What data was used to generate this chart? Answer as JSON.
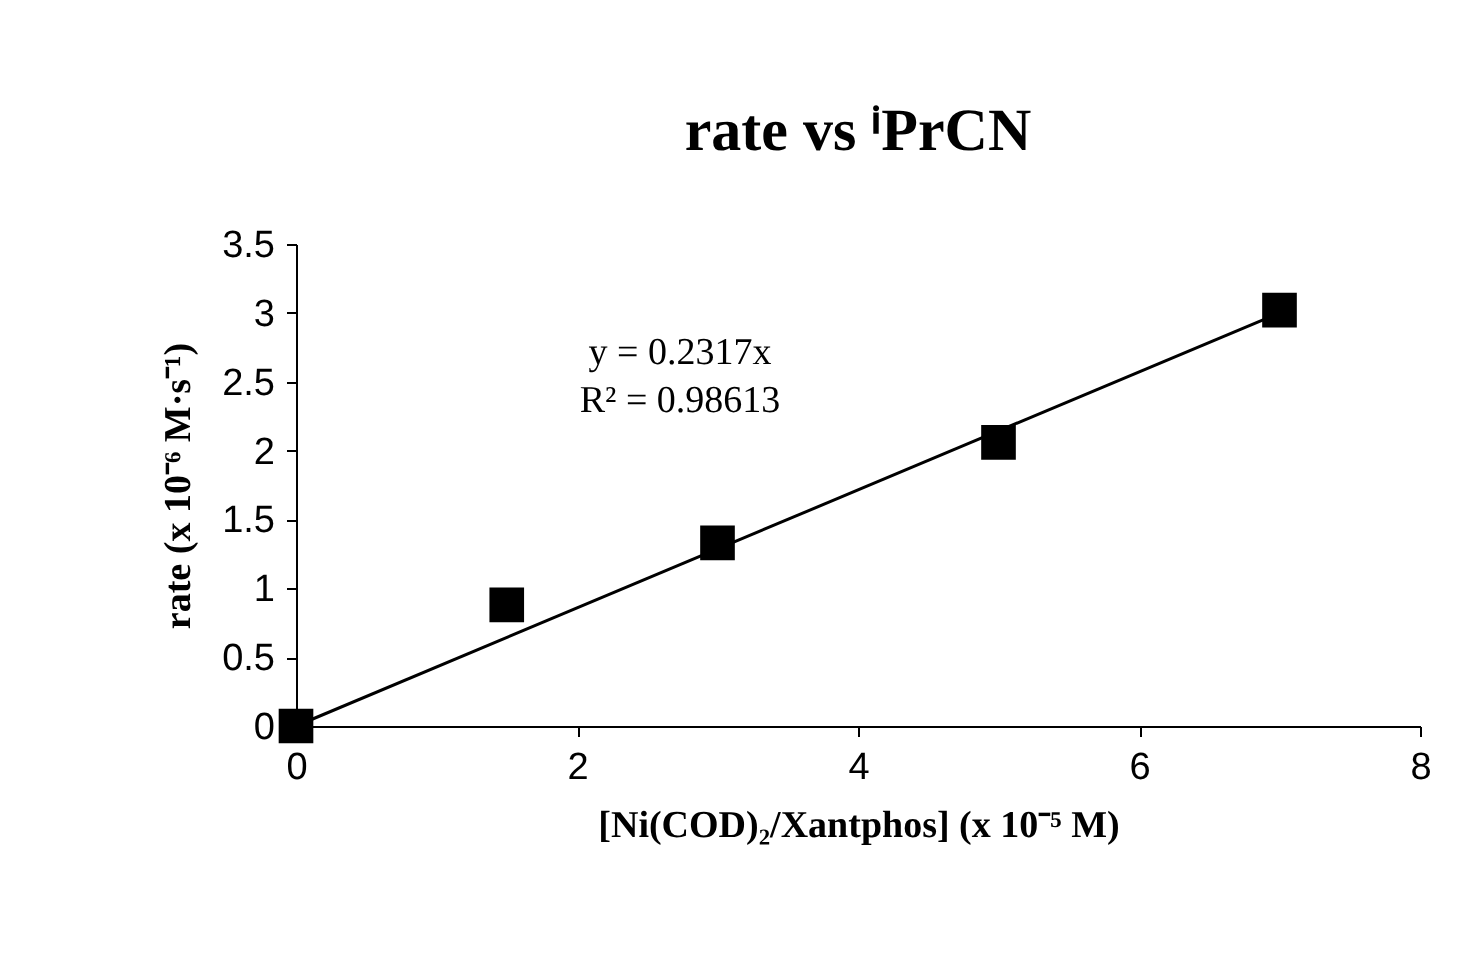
{
  "chart_data": {
    "type": "scatter",
    "title": "rate vs ⁱPrCN",
    "xlabel": "[Ni(COD)₂/Xantphos]  (x 10⁻⁵ M)",
    "ylabel": "rate (x 10⁻⁶ M·s⁻¹)",
    "annotations": [
      "y = 0.2317x",
      "R² = 0.98613"
    ],
    "x": [
      0,
      1.5,
      3,
      5,
      7
    ],
    "series": [
      {
        "type": "line",
        "color": "#000000",
        "x": [
          0,
          7
        ],
        "values": [
          0,
          3.0
        ],
        "line_style": "solid"
      },
      {
        "color": "#000000",
        "marker": "square",
        "values": [
          0,
          0.88,
          1.33,
          2.06,
          3.02
        ]
      }
    ],
    "xlim": [
      0,
      8
    ],
    "xticks": [
      0,
      2,
      4,
      6,
      8
    ],
    "ylim": [
      0,
      3.5
    ],
    "yticks": [
      0,
      0.5,
      1,
      1.5,
      2,
      2.5,
      3,
      3.5
    ],
    "grid": false
  }
}
